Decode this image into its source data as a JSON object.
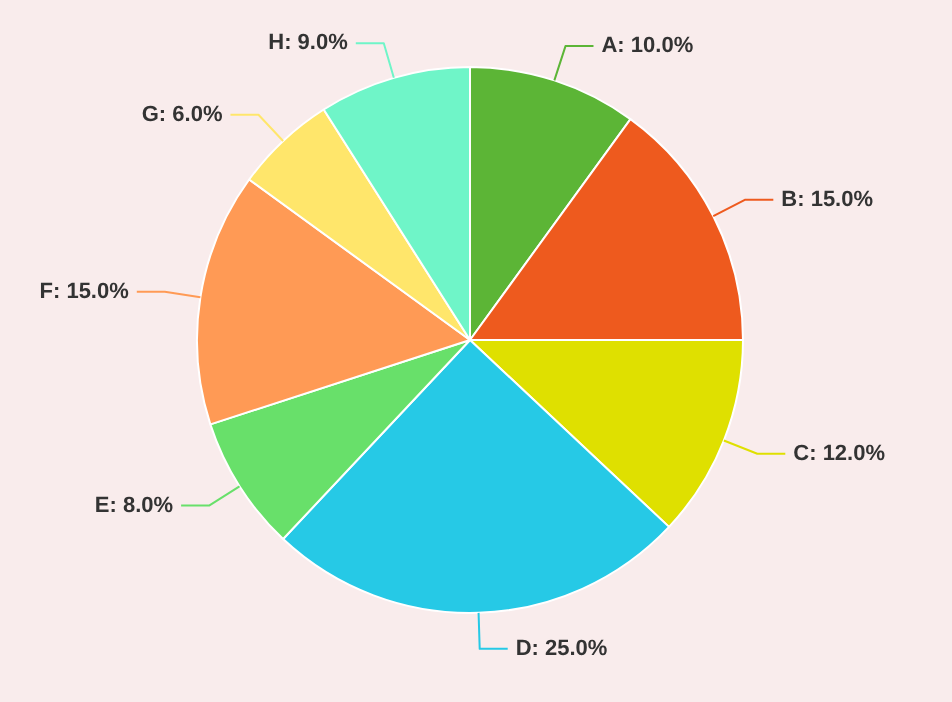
{
  "chart_data": {
    "type": "pie",
    "categories": [
      "A",
      "B",
      "C",
      "D",
      "E",
      "F",
      "G",
      "H"
    ],
    "values": [
      10,
      15,
      12,
      25,
      8,
      15,
      6,
      9
    ],
    "value_labels": [
      "10.0%",
      "15.0%",
      "12.0%",
      "25.0%",
      "8.0%",
      "15.0%",
      "6.0%",
      "9.0%"
    ],
    "colors": [
      "#5cb536",
      "#ee5a1e",
      "#dfe000",
      "#26c9e6",
      "#68e06a",
      "#ff9a55",
      "#ffe66b",
      "#6ff5c8"
    ],
    "legend": false
  }
}
